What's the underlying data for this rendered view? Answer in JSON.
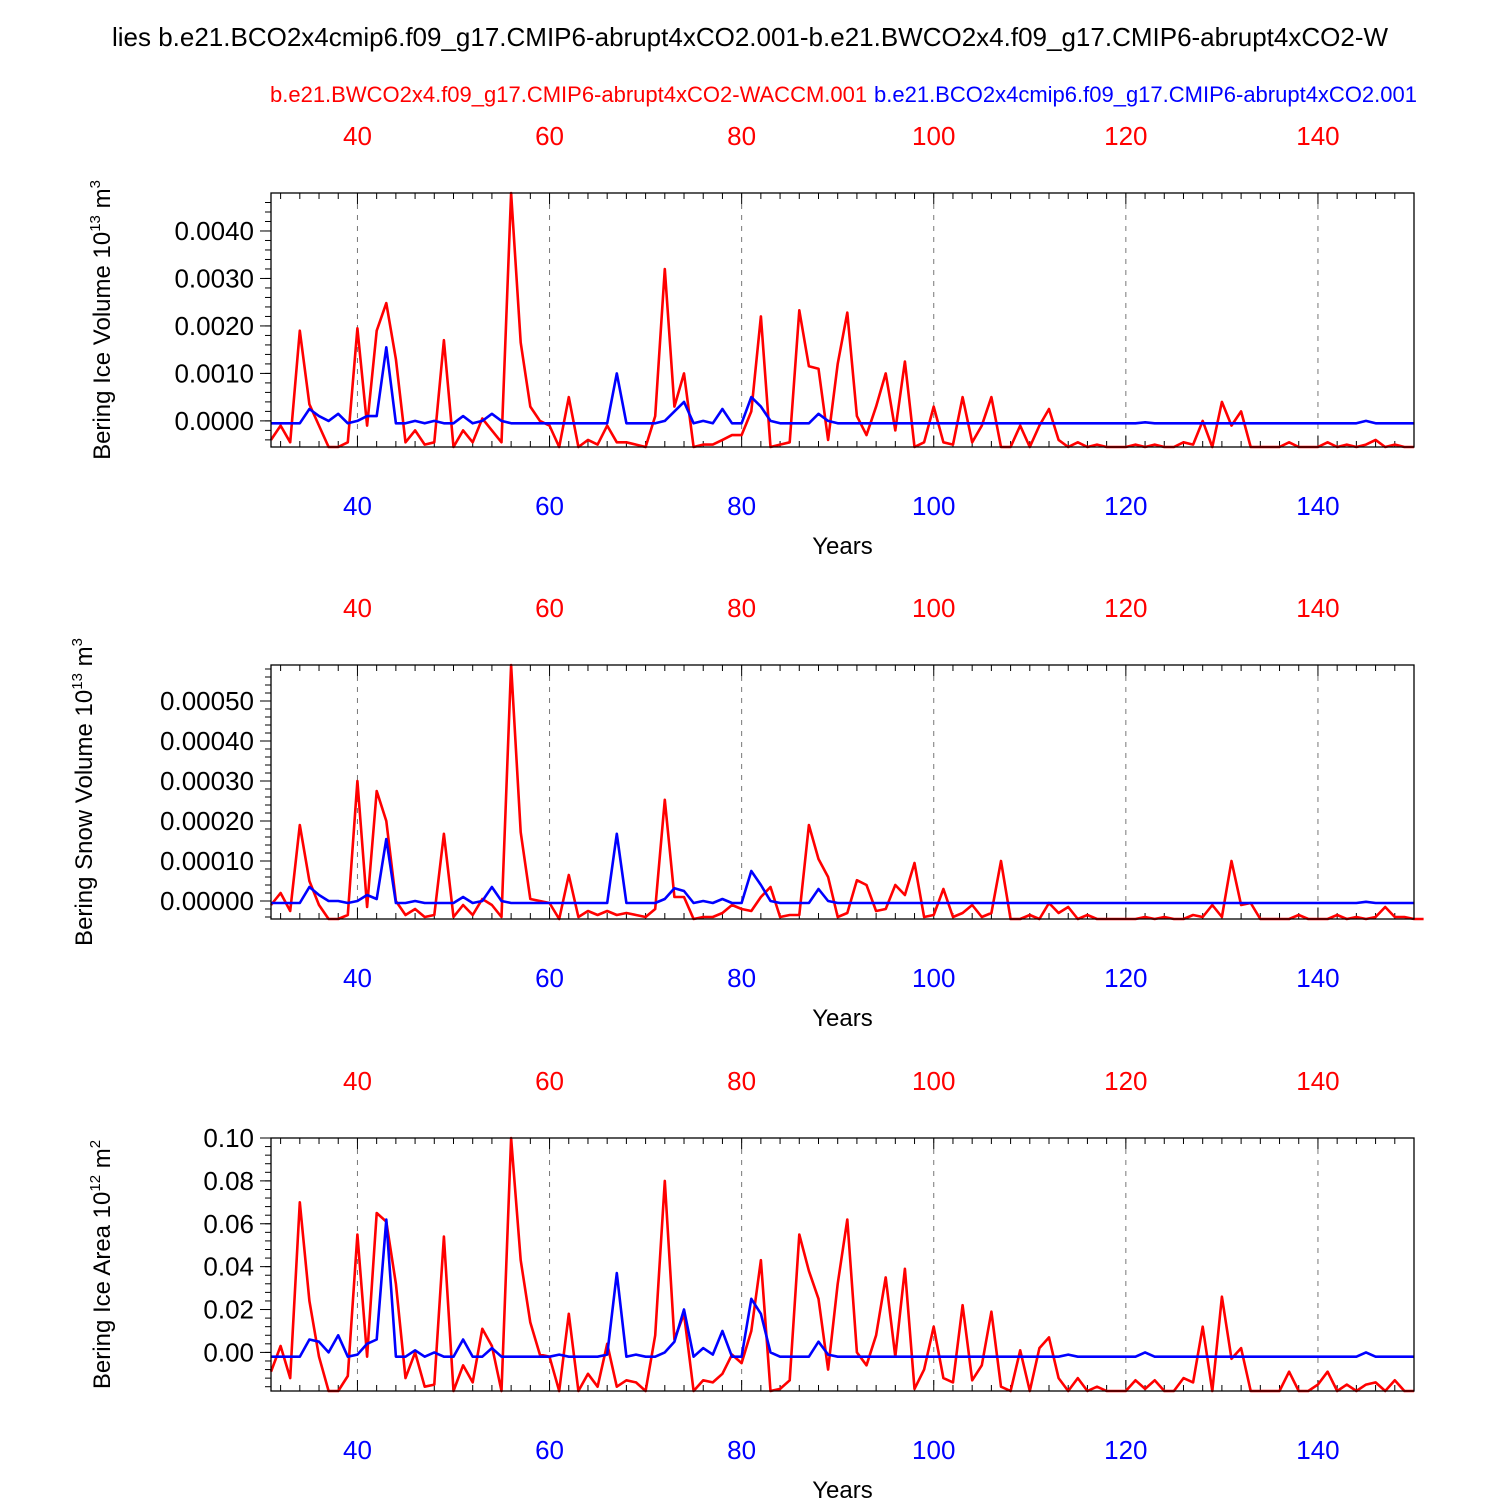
{
  "figure": {
    "title": "lies b.e21.BCO2x4cmip6.f09_g17.CMIP6-abrupt4xCO2.001-b.e21.BWCO2x4.f09_g17.CMIP6-abrupt4xCO2-W",
    "series_labels": [
      {
        "name": "b.e21.BWCO2x4.f09_g17.CMIP6-abrupt4xCO2-WACCM.001",
        "color": "#ff0000"
      },
      {
        "name": "b.e21.BCO2x4cmip6.f09_g17.CMIP6-abrupt4xCO2.001",
        "color": "#0000ff"
      }
    ]
  },
  "chart_data": [
    {
      "type": "line",
      "ylabel": "Bering Ice Volume 10",
      "ylabel_exp": "13",
      "ylabel_unit": " m",
      "ylabel_unit_exp": "3",
      "xlabel": "Years",
      "xlim": [
        31,
        150
      ],
      "ylim": [
        -0.00055,
        0.0048
      ],
      "x_ticks": [
        40,
        60,
        80,
        100,
        120,
        140
      ],
      "y_ticks": [
        "0.0000",
        "0.0010",
        "0.0020",
        "0.0030",
        "0.0040"
      ],
      "y_tick_values": [
        0,
        0.001,
        0.002,
        0.003,
        0.004
      ],
      "grid": "x-dashed",
      "series": [
        {
          "name": "b.e21.BWCO2x4.f09_g17.CMIP6-abrupt4xCO2-WACCM.001",
          "color": "#ff0000",
          "values": [
            -0.0004,
            -0.0001,
            -0.00045,
            0.0019,
            0.00035,
            -0.0001,
            -0.00055,
            -0.00055,
            -0.00045,
            0.00195,
            -0.0001,
            0.0019,
            0.00248,
            0.0013,
            -0.00045,
            -0.0002,
            -0.0005,
            -0.00045,
            0.0017,
            -0.00055,
            -0.0002,
            -0.00045,
            5e-05,
            -0.0002,
            -0.00045,
            0.0048,
            0.00165,
            0.0003,
            0.0,
            -0.0001,
            -0.00055,
            0.0005,
            -0.00055,
            -0.0004,
            -0.0005,
            -0.0001,
            -0.00045,
            -0.00045,
            -0.0005,
            -0.00055,
            0.0001,
            0.0032,
            0.0003,
            0.001,
            -0.00055,
            -0.0005,
            -0.0005,
            -0.0004,
            -0.0003,
            -0.0003,
            0.0002,
            0.0022,
            -0.00055,
            -0.0005,
            -0.00045,
            0.00233,
            0.00115,
            0.0011,
            -0.0004,
            0.0012,
            0.00228,
            0.0001,
            -0.0003,
            0.0003,
            0.001,
            -0.0002,
            0.00125,
            -0.00055,
            -0.00045,
            0.0003,
            -0.00045,
            -0.0005,
            0.0005,
            -0.00045,
            -0.0001,
            0.0005,
            -0.00055,
            -0.00055,
            -0.0001,
            -0.00055,
            -0.0001,
            0.00025,
            -0.0004,
            -0.00055,
            -0.00045,
            -0.00055,
            -0.0005,
            -0.00055,
            -0.00055,
            -0.00055,
            -0.0005,
            -0.00055,
            -0.0005,
            -0.00055,
            -0.00055,
            -0.00045,
            -0.0005,
            0.0,
            -0.00055,
            0.0004,
            -0.0001,
            0.0002,
            -0.00055,
            -0.00055,
            -0.00055,
            -0.00055,
            -0.00045,
            -0.00055,
            -0.00055,
            -0.00055,
            -0.00045,
            -0.00055,
            -0.0005,
            -0.00055,
            -0.0005,
            -0.0004,
            -0.00055,
            -0.0005,
            -0.00055,
            -0.00055
          ]
        },
        {
          "name": "b.e21.BCO2x4cmip6.f09_g17.CMIP6-abrupt4xCO2.001",
          "color": "#0000ff",
          "values": [
            -5e-05,
            -5e-05,
            -5e-05,
            -5e-05,
            0.00025,
            0.0001,
            0.0,
            0.00015,
            -5e-05,
            0.0,
            0.0001,
            0.0001,
            0.00155,
            -5e-05,
            -5e-05,
            0.0,
            -5e-05,
            0.0,
            -5e-05,
            -5e-05,
            0.0001,
            -5e-05,
            0.0,
            0.00015,
            0.0,
            -5e-05,
            -5e-05,
            -5e-05,
            -5e-05,
            -5e-05,
            -5e-05,
            -5e-05,
            -5e-05,
            -5e-05,
            -5e-05,
            -5e-05,
            0.001,
            -5e-05,
            -5e-05,
            -5e-05,
            -5e-05,
            0.0,
            0.0002,
            0.0004,
            -5e-05,
            0.0,
            -5e-05,
            0.00025,
            -5e-05,
            -5e-05,
            0.0005,
            0.0003,
            0.0,
            -5e-05,
            -5e-05,
            -5e-05,
            -5e-05,
            0.00015,
            0.0,
            -5e-05,
            -5e-05,
            -5e-05,
            -5e-05,
            -5e-05,
            -5e-05,
            -5e-05,
            -5e-05,
            -5e-05,
            -5e-05,
            -5e-05,
            -5e-05,
            -5e-05,
            -5e-05,
            -5e-05,
            -5e-05,
            -5e-05,
            -5e-05,
            -5e-05,
            -5e-05,
            -5e-05,
            -5e-05,
            -5e-05,
            -5e-05,
            -5e-05,
            -5e-05,
            -5e-05,
            -5e-05,
            -5e-05,
            -5e-05,
            -5e-05,
            -5e-05,
            -3e-05,
            -5e-05,
            -5e-05,
            -5e-05,
            -5e-05,
            -5e-05,
            -5e-05,
            -5e-05,
            -5e-05,
            -5e-05,
            -5e-05,
            -5e-05,
            -5e-05,
            -5e-05,
            -5e-05,
            -5e-05,
            -5e-05,
            -5e-05,
            -5e-05,
            -5e-05,
            -5e-05,
            -5e-05,
            -5e-05,
            0.0,
            -5e-05,
            -5e-05,
            -5e-05,
            -5e-05,
            -5e-05
          ]
        }
      ]
    },
    {
      "type": "line",
      "ylabel": "Bering Snow Volume 10",
      "ylabel_exp": "13",
      "ylabel_unit": " m",
      "ylabel_unit_exp": "3",
      "xlabel": "Years",
      "xlim": [
        31,
        150
      ],
      "ylim": [
        -4.5e-05,
        0.00059
      ],
      "x_ticks": [
        40,
        60,
        80,
        100,
        120,
        140
      ],
      "y_ticks": [
        "0.00000",
        "0.00010",
        "0.00020",
        "0.00030",
        "0.00040",
        "0.00050"
      ],
      "y_tick_values": [
        0,
        0.0001,
        0.0002,
        0.0003,
        0.0004,
        0.0005
      ],
      "grid": "x-dashed",
      "series": [
        {
          "name": "b.e21.BWCO2x4.f09_g17.CMIP6-abrupt4xCO2-WACCM.001",
          "color": "#ff0000",
          "values": [
            -1e-05,
            2e-05,
            -2.5e-05,
            0.00019,
            5e-05,
            -1e-05,
            -4.5e-05,
            -4.5e-05,
            -3.5e-05,
            0.0003,
            -1.5e-05,
            0.000275,
            0.0002,
            0.0,
            -3.5e-05,
            -2e-05,
            -4e-05,
            -3.5e-05,
            0.000168,
            -4e-05,
            -1e-05,
            -3.5e-05,
            5e-06,
            -1e-05,
            -4e-05,
            0.00059,
            0.000172,
            5e-06,
            0.0,
            -5e-06,
            -4.5e-05,
            6.5e-05,
            -4e-05,
            -2.5e-05,
            -3.5e-05,
            -2.5e-05,
            -3.5e-05,
            -3e-05,
            -3.5e-05,
            -4e-05,
            -2e-05,
            0.000253,
            1e-05,
            1e-05,
            -4.5e-05,
            -4e-05,
            -4e-05,
            -3e-05,
            -1e-05,
            -2e-05,
            -2.5e-05,
            1e-05,
            3.5e-05,
            -4e-05,
            -3.5e-05,
            -3.5e-05,
            0.00019,
            0.000105,
            6e-05,
            -4e-05,
            -3e-05,
            5.2e-05,
            4e-05,
            -2.5e-05,
            -2e-05,
            4e-05,
            1.5e-05,
            9.5e-05,
            -4e-05,
            -3.5e-05,
            3e-05,
            -4e-05,
            -3e-05,
            -1e-05,
            -4e-05,
            -3e-05,
            0.0001,
            -4.5e-05,
            -4.5e-05,
            -3.5e-05,
            -4.5e-05,
            -5e-06,
            -3e-05,
            -1.5e-05,
            -4.5e-05,
            -3.5e-05,
            -4.5e-05,
            -4.5e-05,
            -4.5e-05,
            -4.5e-05,
            -4.5e-05,
            -4e-05,
            -4.5e-05,
            -4e-05,
            -4.5e-05,
            -4.5e-05,
            -3.5e-05,
            -4e-05,
            -1e-05,
            -4e-05,
            0.0001,
            -1e-05,
            -5e-06,
            -4.5e-05,
            -4.5e-05,
            -4.5e-05,
            -4.5e-05,
            -3.5e-05,
            -4.5e-05,
            -4.5e-05,
            -4.5e-05,
            -3.5e-05,
            -4.5e-05,
            -4e-05,
            -4.5e-05,
            -4e-05,
            -1.5e-05,
            -4e-05,
            -4e-05,
            -4.5e-05,
            -4.5e-05
          ]
        },
        {
          "name": "b.e21.BCO2x4cmip6.f09_g17.CMIP6-abrupt4xCO2.001",
          "color": "#0000ff",
          "values": [
            -5e-06,
            -5e-06,
            -5e-06,
            -5e-06,
            3.5e-05,
            1.5e-05,
            0.0,
            0.0,
            -5e-06,
            0.0,
            1.5e-05,
            5e-06,
            0.000155,
            -5e-06,
            -5e-06,
            0.0,
            -5e-06,
            -5e-06,
            -5e-06,
            -5e-06,
            1e-05,
            -5e-06,
            0.0,
            3.5e-05,
            0.0,
            -5e-06,
            -5e-06,
            -5e-06,
            -5e-06,
            -5e-06,
            -5e-06,
            -5e-06,
            -5e-06,
            -5e-06,
            -5e-06,
            -5e-06,
            0.000168,
            -5e-06,
            -5e-06,
            -5e-06,
            -5e-06,
            5e-06,
            3.2e-05,
            2.5e-05,
            -5e-06,
            0.0,
            -5e-06,
            5e-06,
            -5e-06,
            -5e-06,
            7.5e-05,
            4e-05,
            0.0,
            -5e-06,
            -5e-06,
            -5e-06,
            -5e-06,
            3e-05,
            0.0,
            -5e-06,
            -5e-06,
            -5e-06,
            -5e-06,
            -5e-06,
            -5e-06,
            -5e-06,
            -5e-06,
            -5e-06,
            -5e-06,
            -5e-06,
            -5e-06,
            -5e-06,
            -5e-06,
            -5e-06,
            -5e-06,
            -5e-06,
            -5e-06,
            -5e-06,
            -5e-06,
            -5e-06,
            -5e-06,
            -5e-06,
            -5e-06,
            -5e-06,
            -5e-06,
            -5e-06,
            -5e-06,
            -5e-06,
            -5e-06,
            -5e-06,
            -5e-06,
            -5e-06,
            -5e-06,
            -5e-06,
            -5e-06,
            -5e-06,
            -5e-06,
            -5e-06,
            -5e-06,
            -5e-06,
            -5e-06,
            -5e-06,
            -5e-06,
            -5e-06,
            -5e-06,
            -5e-06,
            -5e-06,
            -5e-06,
            -5e-06,
            -5e-06,
            -5e-06,
            -5e-06,
            -5e-06,
            -5e-06,
            -2e-06,
            -5e-06,
            -5e-06,
            -5e-06,
            -5e-06,
            -5e-06
          ]
        }
      ]
    },
    {
      "type": "line",
      "ylabel": "Bering Ice Area 10",
      "ylabel_exp": "12",
      "ylabel_unit": " m",
      "ylabel_unit_exp": "2",
      "xlabel": "Years",
      "xlim": [
        31,
        150
      ],
      "ylim": [
        -0.018,
        0.1
      ],
      "x_ticks": [
        40,
        60,
        80,
        100,
        120,
        140
      ],
      "y_ticks": [
        "0.00",
        "0.02",
        "0.04",
        "0.06",
        "0.08",
        "0.10"
      ],
      "y_tick_values": [
        0,
        0.02,
        0.04,
        0.06,
        0.08,
        0.1
      ],
      "grid": "x-dashed",
      "series": [
        {
          "name": "b.e21.BWCO2x4.f09_g17.CMIP6-abrupt4xCO2-WACCM.001",
          "color": "#ff0000",
          "values": [
            -0.009,
            0.003,
            -0.012,
            0.07,
            0.024,
            -0.002,
            -0.018,
            -0.018,
            -0.011,
            0.055,
            -0.002,
            0.065,
            0.061,
            0.032,
            -0.012,
            0.0,
            -0.016,
            -0.015,
            0.054,
            -0.018,
            -0.006,
            -0.014,
            0.011,
            0.003,
            -0.018,
            0.1,
            0.043,
            0.014,
            -0.001,
            -0.002,
            -0.018,
            0.018,
            -0.018,
            -0.01,
            -0.016,
            0.004,
            -0.016,
            -0.013,
            -0.014,
            -0.018,
            0.008,
            0.08,
            0.006,
            0.018,
            -0.018,
            -0.013,
            -0.014,
            -0.01,
            -0.001,
            -0.005,
            0.01,
            0.043,
            -0.018,
            -0.017,
            -0.013,
            0.055,
            0.038,
            0.025,
            -0.008,
            0.032,
            0.062,
            0.0,
            -0.006,
            0.008,
            0.035,
            -0.002,
            0.039,
            -0.017,
            -0.008,
            0.012,
            -0.012,
            -0.014,
            0.022,
            -0.013,
            -0.006,
            0.019,
            -0.016,
            -0.018,
            0.001,
            -0.018,
            0.002,
            0.007,
            -0.012,
            -0.018,
            -0.012,
            -0.018,
            -0.016,
            -0.018,
            -0.018,
            -0.018,
            -0.013,
            -0.017,
            -0.013,
            -0.018,
            -0.018,
            -0.012,
            -0.014,
            0.012,
            -0.018,
            0.026,
            -0.003,
            0.002,
            -0.018,
            -0.018,
            -0.018,
            -0.018,
            -0.009,
            -0.018,
            -0.018,
            -0.015,
            -0.009,
            -0.018,
            -0.015,
            -0.018,
            -0.015,
            -0.014,
            -0.018,
            -0.013,
            -0.018,
            -0.018
          ]
        },
        {
          "name": "b.e21.BCO2x4cmip6.f09_g17.CMIP6-abrupt4xCO2.001",
          "color": "#0000ff",
          "values": [
            -0.002,
            -0.002,
            -0.002,
            -0.002,
            0.006,
            0.005,
            0.0,
            0.008,
            -0.002,
            -0.001,
            0.004,
            0.006,
            0.062,
            -0.002,
            -0.002,
            0.001,
            -0.002,
            0.0,
            -0.002,
            -0.002,
            0.006,
            -0.002,
            -0.002,
            0.002,
            -0.002,
            -0.002,
            -0.002,
            -0.002,
            -0.002,
            -0.002,
            -0.001,
            -0.002,
            -0.002,
            -0.002,
            -0.002,
            -0.001,
            0.037,
            -0.002,
            -0.001,
            -0.002,
            -0.002,
            0.0,
            0.005,
            0.02,
            -0.002,
            0.002,
            -0.001,
            0.01,
            -0.002,
            -0.002,
            0.025,
            0.018,
            0.0,
            -0.002,
            -0.002,
            -0.002,
            -0.002,
            0.005,
            -0.001,
            -0.002,
            -0.002,
            -0.002,
            -0.002,
            -0.002,
            -0.002,
            -0.002,
            -0.002,
            -0.002,
            -0.002,
            -0.002,
            -0.002,
            -0.002,
            -0.002,
            -0.002,
            -0.002,
            -0.002,
            -0.002,
            -0.002,
            -0.002,
            -0.002,
            -0.002,
            -0.002,
            -0.002,
            -0.001,
            -0.002,
            -0.002,
            -0.002,
            -0.002,
            -0.002,
            -0.002,
            -0.002,
            0.0,
            -0.002,
            -0.002,
            -0.002,
            -0.002,
            -0.002,
            -0.002,
            -0.002,
            -0.002,
            -0.002,
            -0.002,
            -0.002,
            -0.002,
            -0.002,
            -0.002,
            -0.002,
            -0.002,
            -0.002,
            -0.002,
            -0.002,
            -0.002,
            -0.002,
            -0.002,
            0.0,
            -0.002,
            -0.002,
            -0.002,
            -0.002,
            -0.002
          ]
        }
      ]
    }
  ]
}
